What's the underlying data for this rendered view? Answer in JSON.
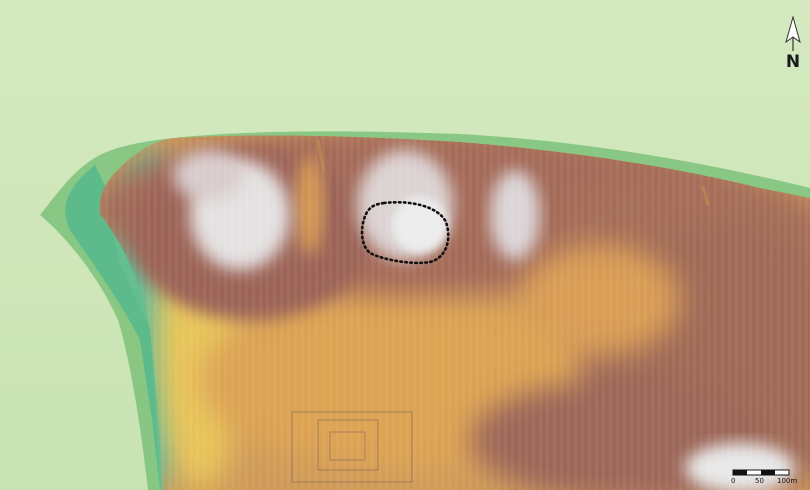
{
  "map": {
    "north_label": "N",
    "scale": {
      "ticks": [
        "0",
        "50",
        "100m"
      ]
    },
    "colors": {
      "background": "#cfe6b8",
      "low": "#58b88a",
      "mid": "#d89a4c",
      "high": "#9a6657",
      "peak": "#e6e6e6"
    },
    "highlight": "dotted outline"
  }
}
